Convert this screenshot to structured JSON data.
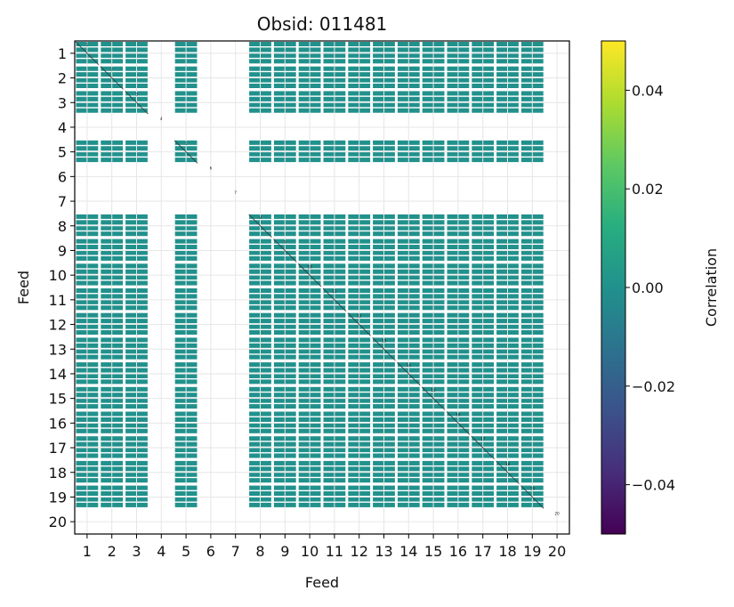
{
  "chart_data": {
    "type": "heatmap",
    "title": "Obsid: 011481",
    "xlabel": "Feed",
    "ylabel": "Feed",
    "x_ticks": [
      "1",
      "2",
      "3",
      "4",
      "5",
      "6",
      "7",
      "8",
      "9",
      "10",
      "11",
      "12",
      "13",
      "14",
      "15",
      "16",
      "17",
      "18",
      "19",
      "20"
    ],
    "y_ticks": [
      "1",
      "2",
      "3",
      "4",
      "5",
      "6",
      "7",
      "8",
      "9",
      "10",
      "11",
      "12",
      "13",
      "14",
      "15",
      "16",
      "17",
      "18",
      "19",
      "20"
    ],
    "active_feeds": [
      1,
      2,
      3,
      5,
      8,
      9,
      10,
      11,
      12,
      13,
      14,
      15,
      16,
      17,
      18,
      19
    ],
    "inactive_feeds": [
      4,
      6,
      7,
      20
    ],
    "cell_value": 0.0,
    "diagonal_labels": [
      "1",
      "2",
      "3",
      "4",
      "5",
      "6",
      "7",
      "8",
      "9",
      "10",
      "11",
      "12",
      "13",
      "14",
      "15",
      "16",
      "17",
      "18",
      "19",
      "20"
    ],
    "colorbar": {
      "label": "Correlation",
      "colormap": "viridis",
      "vmin": -0.05,
      "vmax": 0.05,
      "ticks": [
        0.04,
        0.02,
        0.0,
        -0.02,
        -0.04
      ],
      "tick_labels": [
        "0.04",
        "0.02",
        "0.00",
        "−0.02",
        "−0.04"
      ]
    },
    "colors": {
      "cell": "#21918c",
      "grid": "#e6e6e6",
      "diagonal": "#333333"
    },
    "grid": true
  }
}
